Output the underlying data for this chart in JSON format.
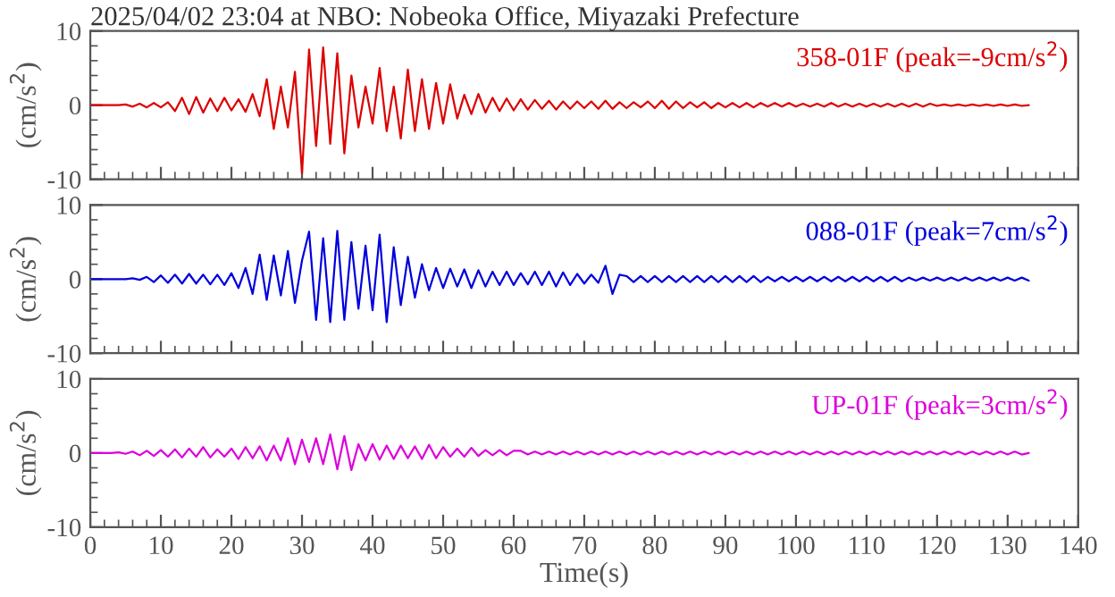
{
  "chart_data": [
    {
      "type": "line",
      "title": "2025/04/02 23:04 at NBO: Nobeoka Office, Miyazaki Prefecture",
      "ylabel": "(cm/s$^{2}$)",
      "tick_labels": "y",
      "xlim": [
        0,
        140
      ],
      "xticks": [
        0,
        10,
        20,
        30,
        40,
        50,
        60,
        70,
        80,
        90,
        100,
        110,
        120,
        130,
        140
      ],
      "ylim": [
        -10,
        10
      ],
      "yticks": [
        -10,
        0,
        10
      ],
      "x": [
        0,
        1,
        2,
        3,
        4,
        5,
        6,
        7,
        8,
        9,
        10,
        11,
        12,
        13,
        14,
        15,
        16,
        17,
        18,
        19,
        20,
        21,
        22,
        23,
        24,
        25,
        26,
        27,
        28,
        29,
        30,
        31,
        32,
        33,
        34,
        35,
        36,
        37,
        38,
        39,
        40,
        41,
        42,
        43,
        44,
        45,
        46,
        47,
        48,
        49,
        50,
        51,
        52,
        53,
        54,
        55,
        56,
        57,
        58,
        59,
        60,
        61,
        62,
        63,
        64,
        65,
        66,
        67,
        68,
        69,
        70,
        71,
        72,
        73,
        74,
        75,
        76,
        77,
        78,
        79,
        80,
        81,
        82,
        83,
        84,
        85,
        86,
        87,
        88,
        89,
        90,
        91,
        92,
        93,
        94,
        95,
        96,
        97,
        98,
        99,
        100,
        101,
        102,
        103,
        104,
        105,
        106,
        107,
        108,
        109,
        110,
        111,
        112,
        113,
        114,
        115,
        116,
        117,
        118,
        119,
        120,
        121,
        122,
        123,
        124,
        125,
        126,
        127,
        128,
        129,
        130,
        131,
        132,
        133
      ],
      "series": [
        {
          "name": "358-01F (peak=-9cm/s$^{2}$)",
          "color": "#dd0000",
          "values": [
            0,
            0,
            0,
            0,
            0,
            0.1,
            -0.2,
            0.2,
            -0.3,
            0.3,
            -0.3,
            0.4,
            -0.8,
            1.0,
            -1.2,
            1.1,
            -1.0,
            0.9,
            -0.8,
            1.0,
            -0.7,
            0.8,
            -0.9,
            1.5,
            -1.5,
            3.5,
            -3.2,
            2.5,
            -3.0,
            4.5,
            -9.2,
            7.5,
            -5.5,
            7.8,
            -5.2,
            7.0,
            -6.5,
            4.0,
            -3.0,
            2.5,
            -2.5,
            5.0,
            -3.5,
            2.5,
            -4.5,
            4.8,
            -3.5,
            3.5,
            -3.2,
            3.0,
            -2.5,
            2.8,
            -1.8,
            1.4,
            -1.2,
            1.5,
            -1.0,
            1.0,
            -0.8,
            0.9,
            -0.7,
            0.8,
            -0.6,
            0.7,
            -0.5,
            0.6,
            -0.6,
            0.5,
            -0.5,
            0.5,
            -0.4,
            0.5,
            -0.5,
            0.6,
            -0.5,
            0.4,
            -0.4,
            0.4,
            -0.3,
            0.5,
            -0.4,
            0.6,
            -0.5,
            0.5,
            -0.4,
            0.4,
            -0.3,
            0.4,
            -0.4,
            0.3,
            -0.3,
            0.3,
            -0.3,
            0.3,
            -0.3,
            0.3,
            -0.2,
            0.3,
            -0.2,
            0.3,
            -0.2,
            0.2,
            -0.2,
            0.2,
            -0.2,
            0.3,
            -0.2,
            0.2,
            -0.2,
            0.2,
            -0.2,
            0.2,
            -0.2,
            0.2,
            -0.2,
            0.2,
            -0.2,
            0.2,
            -0.2,
            0.2,
            -0.1,
            0.1,
            -0.1,
            0.1,
            -0.1,
            0.1,
            -0.1,
            0.1,
            -0.1,
            0.1,
            -0.1,
            0.1,
            -0.1,
            0
          ]
        }
      ]
    },
    {
      "type": "line",
      "ylabel": "(cm/s$^{2}$)",
      "tick_labels": "y",
      "xlim": [
        0,
        140
      ],
      "xticks": [
        0,
        10,
        20,
        30,
        40,
        50,
        60,
        70,
        80,
        90,
        100,
        110,
        120,
        130,
        140
      ],
      "ylim": [
        -10,
        10
      ],
      "yticks": [
        -10,
        0,
        10
      ],
      "x": [
        0,
        1,
        2,
        3,
        4,
        5,
        6,
        7,
        8,
        9,
        10,
        11,
        12,
        13,
        14,
        15,
        16,
        17,
        18,
        19,
        20,
        21,
        22,
        23,
        24,
        25,
        26,
        27,
        28,
        29,
        30,
        31,
        32,
        33,
        34,
        35,
        36,
        37,
        38,
        39,
        40,
        41,
        42,
        43,
        44,
        45,
        46,
        47,
        48,
        49,
        50,
        51,
        52,
        53,
        54,
        55,
        56,
        57,
        58,
        59,
        60,
        61,
        62,
        63,
        64,
        65,
        66,
        67,
        68,
        69,
        70,
        71,
        72,
        73,
        74,
        75,
        76,
        77,
        78,
        79,
        80,
        81,
        82,
        83,
        84,
        85,
        86,
        87,
        88,
        89,
        90,
        91,
        92,
        93,
        94,
        95,
        96,
        97,
        98,
        99,
        100,
        101,
        102,
        103,
        104,
        105,
        106,
        107,
        108,
        109,
        110,
        111,
        112,
        113,
        114,
        115,
        116,
        117,
        118,
        119,
        120,
        121,
        122,
        123,
        124,
        125,
        126,
        127,
        128,
        129,
        130,
        131,
        132,
        133
      ],
      "series": [
        {
          "name": "088-01F (peak=7cm/s$^{2}$)",
          "color": "#0000dd",
          "values": [
            0,
            0,
            0,
            0,
            0,
            0,
            0.1,
            -0.1,
            0.3,
            -0.4,
            0.5,
            -0.5,
            0.6,
            -0.6,
            0.7,
            -0.6,
            0.6,
            -0.7,
            0.6,
            -0.8,
            0.8,
            -1.2,
            1.5,
            -2.0,
            3.3,
            -2.8,
            3.2,
            -2.2,
            3.8,
            -3.2,
            2.5,
            6.4,
            -5.5,
            5.5,
            -5.8,
            6.5,
            -5.5,
            5.0,
            -4.0,
            4.5,
            -4.2,
            6.0,
            -5.8,
            4.3,
            -3.5,
            3.0,
            -2.5,
            2.0,
            -1.5,
            1.5,
            -1.2,
            1.4,
            -1.0,
            1.3,
            -1.2,
            1.2,
            -1.0,
            1.0,
            -0.8,
            1.0,
            -0.8,
            0.8,
            -0.7,
            1.0,
            -0.8,
            1.0,
            -1.0,
            0.9,
            -0.8,
            0.7,
            -0.6,
            0.6,
            -0.5,
            1.8,
            -2.0,
            0.6,
            0.4,
            -0.4,
            0.4,
            -0.4,
            0.4,
            -0.4,
            0.4,
            -0.4,
            0.4,
            -0.4,
            0.4,
            -0.4,
            0.4,
            -0.4,
            0.4,
            -0.4,
            0.4,
            -0.4,
            0.4,
            -0.4,
            0.3,
            -0.3,
            0.3,
            -0.3,
            0.3,
            -0.3,
            0.3,
            -0.3,
            0.3,
            -0.3,
            0.3,
            -0.3,
            0.3,
            -0.3,
            0.3,
            -0.3,
            0.3,
            -0.3,
            0.3,
            -0.3,
            0.2,
            -0.2,
            0.2,
            -0.2,
            0.2,
            -0.2,
            0.2,
            -0.2,
            0.2,
            -0.2,
            0.2,
            -0.2,
            0.2,
            -0.2,
            0.2,
            -0.2,
            0.2,
            -0.2
          ]
        }
      ]
    },
    {
      "type": "line",
      "ylabel": "(cm/s$^{2}$)",
      "xlabel": "Time(s)",
      "xlim": [
        0,
        140
      ],
      "xticks": [
        0,
        10,
        20,
        30,
        40,
        50,
        60,
        70,
        80,
        90,
        100,
        110,
        120,
        130,
        140
      ],
      "ylim": [
        -10,
        10
      ],
      "yticks": [
        -10,
        0,
        10
      ],
      "x": [
        0,
        1,
        2,
        3,
        4,
        5,
        6,
        7,
        8,
        9,
        10,
        11,
        12,
        13,
        14,
        15,
        16,
        17,
        18,
        19,
        20,
        21,
        22,
        23,
        24,
        25,
        26,
        27,
        28,
        29,
        30,
        31,
        32,
        33,
        34,
        35,
        36,
        37,
        38,
        39,
        40,
        41,
        42,
        43,
        44,
        45,
        46,
        47,
        48,
        49,
        50,
        51,
        52,
        53,
        54,
        55,
        56,
        57,
        58,
        59,
        60,
        61,
        62,
        63,
        64,
        65,
        66,
        67,
        68,
        69,
        70,
        71,
        72,
        73,
        74,
        75,
        76,
        77,
        78,
        79,
        80,
        81,
        82,
        83,
        84,
        85,
        86,
        87,
        88,
        89,
        90,
        91,
        92,
        93,
        94,
        95,
        96,
        97,
        98,
        99,
        100,
        101,
        102,
        103,
        104,
        105,
        106,
        107,
        108,
        109,
        110,
        111,
        112,
        113,
        114,
        115,
        116,
        117,
        118,
        119,
        120,
        121,
        122,
        123,
        124,
        125,
        126,
        127,
        128,
        129,
        130,
        131,
        132,
        133
      ],
      "series": [
        {
          "name": "UP-01F (peak=3cm/s$^{2}$)",
          "color": "#dd00dd",
          "values": [
            0,
            0,
            0,
            0,
            0.1,
            -0.1,
            0.2,
            -0.3,
            0.3,
            -0.4,
            0.4,
            -0.5,
            0.5,
            -0.6,
            0.6,
            -0.5,
            0.8,
            -0.6,
            0.5,
            -0.5,
            0.6,
            -0.8,
            0.8,
            -0.7,
            0.9,
            -1.0,
            1.0,
            -1.0,
            2.0,
            -1.5,
            1.8,
            -1.2,
            2.0,
            -1.5,
            2.5,
            -2.2,
            2.3,
            -2.3,
            1.2,
            -1.0,
            1.2,
            -0.9,
            1.0,
            -0.8,
            1.0,
            -0.7,
            0.9,
            -0.8,
            1.1,
            -0.7,
            0.8,
            -0.5,
            0.6,
            -0.5,
            0.7,
            -0.4,
            0.4,
            -0.3,
            0.4,
            -0.3,
            0.3,
            0.3,
            -0.2,
            0.2,
            -0.2,
            0.2,
            -0.2,
            0.2,
            -0.2,
            0.2,
            -0.2,
            0.2,
            -0.2,
            0.2,
            -0.2,
            0.2,
            -0.2,
            0.2,
            -0.2,
            0.2,
            -0.2,
            0.2,
            -0.2,
            0.2,
            -0.2,
            0.2,
            -0.2,
            0.2,
            -0.2,
            0.2,
            -0.2,
            0.2,
            -0.2,
            0.2,
            -0.2,
            0.2,
            -0.2,
            0.2,
            -0.2,
            0.2,
            -0.2,
            0.2,
            -0.2,
            0.2,
            -0.2,
            0.2,
            -0.2,
            0.2,
            -0.2,
            0.2,
            -0.2,
            0.2,
            -0.2,
            0.2,
            -0.2,
            0.2,
            -0.2,
            0.2,
            -0.2,
            0.2,
            -0.2,
            0.2,
            -0.2,
            0.2,
            -0.2,
            0.2,
            -0.2,
            0.2,
            -0.2,
            0.2,
            -0.2,
            0.2,
            -0.2,
            0
          ]
        }
      ]
    }
  ]
}
